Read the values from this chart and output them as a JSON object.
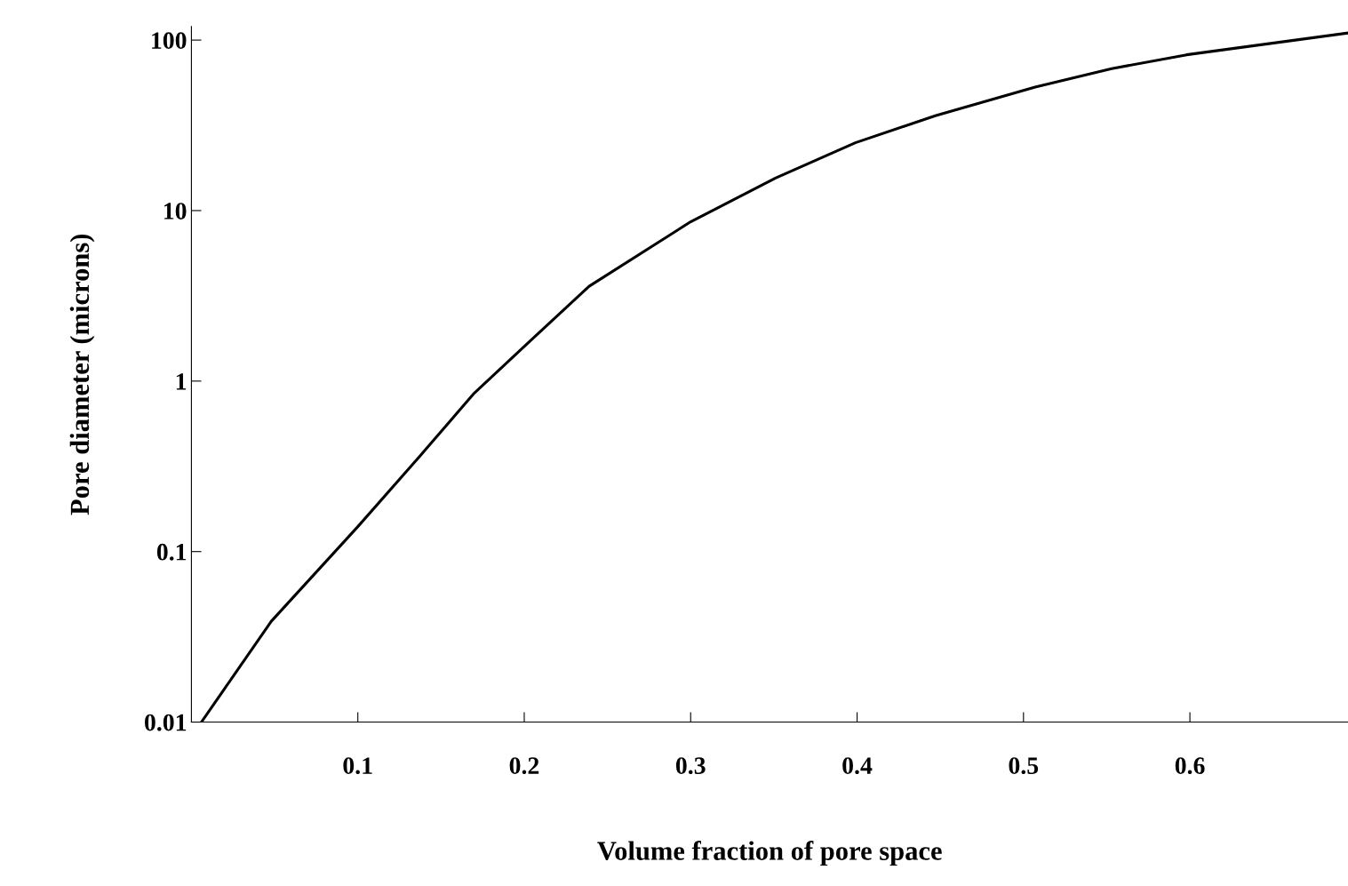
{
  "chart_data": {
    "type": "line",
    "xlabel": "Volume fraction of pore space",
    "ylabel": "Pore diameter (microns)",
    "x": [
      0.006,
      0.048,
      0.1,
      0.138,
      0.17,
      0.203,
      0.239,
      0.3,
      0.351,
      0.399,
      0.447,
      0.507,
      0.553,
      0.598,
      0.695
    ],
    "values": [
      0.01,
      0.039,
      0.14,
      0.37,
      0.85,
      1.7,
      3.6,
      8.6,
      15.5,
      25,
      36,
      53,
      68,
      82,
      110
    ],
    "color": "#000000",
    "log": "y",
    "xlim": [
      0,
      0.695
    ],
    "ylim": [
      0.01,
      120
    ],
    "xticks": [
      0.1,
      0.2,
      0.3,
      0.4,
      0.5,
      0.6
    ],
    "yticks": [
      0.01,
      0.1,
      1,
      10,
      100
    ],
    "grid": false
  }
}
